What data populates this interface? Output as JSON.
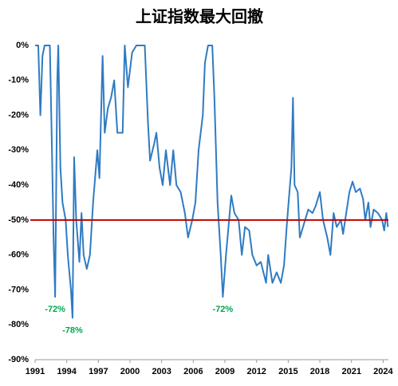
{
  "chart_data": {
    "type": "line",
    "title": "上证指数最大回撤",
    "color": "#2f7bc3",
    "x": [
      1991.0,
      1991.3,
      1991.5,
      1991.7,
      1991.9,
      1992.4,
      1992.6,
      1992.75,
      1992.9,
      1993.1,
      1993.2,
      1993.4,
      1993.6,
      1993.9,
      1994.1,
      1994.4,
      1994.55,
      1994.7,
      1994.9,
      1995.2,
      1995.4,
      1995.6,
      1995.9,
      1996.2,
      1996.5,
      1996.9,
      1997.1,
      1997.4,
      1997.6,
      1997.9,
      1998.2,
      1998.5,
      1998.8,
      1999.3,
      1999.5,
      1999.8,
      2000.2,
      2000.6,
      2001.0,
      2001.4,
      2001.7,
      2001.9,
      2002.3,
      2002.5,
      2002.8,
      2003.1,
      2003.4,
      2003.8,
      2004.1,
      2004.4,
      2004.8,
      2005.2,
      2005.5,
      2005.9,
      2006.2,
      2006.5,
      2006.9,
      2007.1,
      2007.4,
      2007.8,
      2008.0,
      2008.3,
      2008.6,
      2008.8,
      2009.1,
      2009.6,
      2009.9,
      2010.3,
      2010.6,
      2010.9,
      2011.3,
      2011.6,
      2012.0,
      2012.4,
      2012.9,
      2013.1,
      2013.5,
      2013.9,
      2014.3,
      2014.6,
      2014.9,
      2015.3,
      2015.45,
      2015.6,
      2015.9,
      2016.1,
      2016.5,
      2016.9,
      2017.3,
      2017.6,
      2018.0,
      2018.3,
      2018.7,
      2019.0,
      2019.3,
      2019.6,
      2020.0,
      2020.2,
      2020.5,
      2020.8,
      2021.1,
      2021.4,
      2021.8,
      2022.1,
      2022.3,
      2022.6,
      2022.8,
      2023.1,
      2023.5,
      2023.9,
      2024.1,
      2024.3,
      2024.45
    ],
    "values": [
      0,
      0,
      -20,
      -3,
      0,
      0,
      -30,
      -55,
      -72,
      -10,
      0,
      -35,
      -45,
      -50,
      -60,
      -70,
      -78,
      -32,
      -50,
      -62,
      -48,
      -60,
      -64,
      -60,
      -45,
      -30,
      -38,
      -3,
      -25,
      -18,
      -15,
      -10,
      -25,
      -25,
      0,
      -12,
      -2,
      0,
      0,
      0,
      -22,
      -33,
      -28,
      -25,
      -35,
      -40,
      -30,
      -40,
      -30,
      -40,
      -42,
      -48,
      -55,
      -50,
      -45,
      -30,
      -20,
      -5,
      0,
      0,
      -15,
      -45,
      -60,
      -72,
      -60,
      -43,
      -48,
      -50,
      -60,
      -52,
      -53,
      -60,
      -63,
      -62,
      -68,
      -60,
      -68,
      -65,
      -68,
      -63,
      -50,
      -35,
      -15,
      -40,
      -42,
      -55,
      -51,
      -47,
      -48,
      -46,
      -42,
      -50,
      -55,
      -60,
      -48,
      -52,
      -50,
      -54,
      -48,
      -42,
      -39,
      -42,
      -41,
      -44,
      -50,
      -45,
      -52,
      -47,
      -48,
      -50,
      -53,
      -48,
      -52
    ],
    "xlim": [
      1991,
      2024.5
    ],
    "xticks": [
      1991,
      1994,
      1997,
      2000,
      2003,
      2006,
      2009,
      2012,
      2015,
      2018,
      2021,
      2024
    ],
    "ylim": [
      -90,
      0
    ],
    "yticks": [
      {
        "value": 0,
        "label": "0%"
      },
      {
        "value": -10,
        "label": "-10%"
      },
      {
        "value": -20,
        "label": "-20%"
      },
      {
        "value": -30,
        "label": "-30%"
      },
      {
        "value": -40,
        "label": "-40%"
      },
      {
        "value": -50,
        "label": "-50%"
      },
      {
        "value": -60,
        "label": "-60%"
      },
      {
        "value": -70,
        "label": "-70%"
      },
      {
        "value": -80,
        "label": "-80%"
      },
      {
        "value": -90,
        "label": "-90%"
      }
    ],
    "reference_line": {
      "value": -50,
      "color": "#c00000"
    },
    "annotations": [
      {
        "x": 1992.9,
        "value": -72,
        "label": "-72%"
      },
      {
        "x": 1994.55,
        "value": -78,
        "label": "-78%"
      },
      {
        "x": 2008.8,
        "value": -72,
        "label": "-72%"
      }
    ],
    "annotation_color": "#00a651"
  }
}
